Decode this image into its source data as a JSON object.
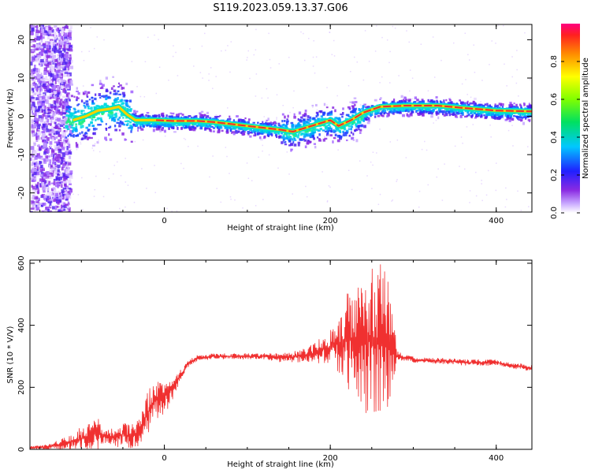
{
  "title": "S119.2023.059.13.37.G06",
  "colors": {
    "snr_line": "#f03030",
    "ridge": "#e83030",
    "axis": "#000000"
  },
  "chart_data": [
    {
      "type": "heatmap",
      "xlabel": "Height of straight line (km)",
      "ylabel": "Frequency (Hz)",
      "xlim": [
        -162,
        443
      ],
      "ylim": [
        -25,
        24
      ],
      "xticks": [
        0,
        200,
        400
      ],
      "yticks": [
        -20,
        -10,
        0,
        10,
        20
      ],
      "colorbar": {
        "label": "Normalized spectral amplitude",
        "range": [
          0,
          1
        ],
        "ticks": [
          "0.0",
          "0.2",
          "0.4",
          "0.6",
          "0.8"
        ]
      },
      "ridge_points": [
        {
          "x": -110,
          "y": -1
        },
        {
          "x": -95,
          "y": 0
        },
        {
          "x": -80,
          "y": 1.5
        },
        {
          "x": -65,
          "y": 2
        },
        {
          "x": -55,
          "y": 2.5
        },
        {
          "x": -45,
          "y": 0.5
        },
        {
          "x": -35,
          "y": -1
        },
        {
          "x": -25,
          "y": -1
        },
        {
          "x": -10,
          "y": -1
        },
        {
          "x": 10,
          "y": -1.2
        },
        {
          "x": 40,
          "y": -1.2
        },
        {
          "x": 60,
          "y": -1.5
        },
        {
          "x": 80,
          "y": -2
        },
        {
          "x": 100,
          "y": -2.5
        },
        {
          "x": 120,
          "y": -3
        },
        {
          "x": 140,
          "y": -3.5
        },
        {
          "x": 155,
          "y": -4
        },
        {
          "x": 170,
          "y": -3
        },
        {
          "x": 185,
          "y": -2
        },
        {
          "x": 200,
          "y": -1
        },
        {
          "x": 210,
          "y": -2.5
        },
        {
          "x": 225,
          "y": -1
        },
        {
          "x": 240,
          "y": 1
        },
        {
          "x": 260,
          "y": 2.5
        },
        {
          "x": 290,
          "y": 2.8
        },
        {
          "x": 330,
          "y": 2.8
        },
        {
          "x": 360,
          "y": 2.2
        },
        {
          "x": 400,
          "y": 1.5
        },
        {
          "x": 443,
          "y": 1.3
        }
      ]
    },
    {
      "type": "line",
      "xlabel": "Height of straight line (km)",
      "ylabel": "SNR (10 * V/V)",
      "xlim": [
        -162,
        443
      ],
      "ylim": [
        0,
        610
      ],
      "xticks": [
        0,
        200,
        400
      ],
      "yticks": [
        0,
        200,
        400,
        600
      ],
      "series": [
        {
          "x": [
            -162,
            -140,
            -120,
            -100,
            -90,
            -80,
            -70,
            -60,
            -50,
            -40,
            -30,
            -20,
            -10,
            0,
            10,
            20,
            30,
            40,
            60,
            80,
            100,
            120,
            140,
            160,
            180,
            200,
            210,
            220,
            230,
            240,
            250,
            260,
            270,
            280,
            283,
            290,
            300,
            320,
            340,
            360,
            380,
            400,
            420,
            443
          ],
          "y": [
            5,
            8,
            20,
            35,
            45,
            50,
            40,
            35,
            50,
            40,
            60,
            120,
            160,
            170,
            200,
            240,
            280,
            295,
            300,
            300,
            300,
            300,
            295,
            300,
            310,
            330,
            340,
            350,
            360,
            360,
            360,
            355,
            350,
            300,
            300,
            295,
            290,
            285,
            285,
            280,
            280,
            280,
            270,
            262
          ],
          "amplitude": [
            5,
            8,
            20,
            40,
            50,
            50,
            30,
            30,
            40,
            40,
            50,
            70,
            70,
            60,
            40,
            20,
            10,
            10,
            10,
            10,
            10,
            10,
            15,
            20,
            30,
            60,
            90,
            150,
            200,
            250,
            260,
            250,
            220,
            40,
            15,
            10,
            10,
            10,
            10,
            10,
            10,
            10,
            10,
            10
          ]
        }
      ]
    }
  ]
}
